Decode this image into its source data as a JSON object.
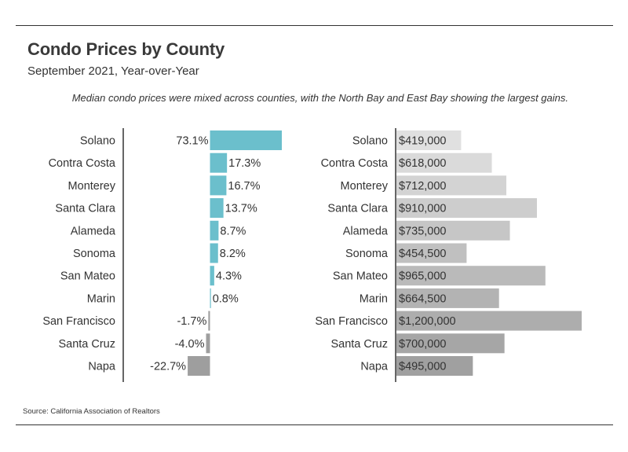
{
  "header": {
    "title": "Condo Prices by County",
    "subtitle": "September 2021, Year-over-Year",
    "note": "Median condo prices were mixed across counties, with the North Bay and East Bay showing the largest gains."
  },
  "footer": {
    "source": "Source:  California Association of Realtors"
  },
  "colors": {
    "positive": "#6bbfcc",
    "negative": "#9e9e9e",
    "price_light": "#e0e0e0",
    "price_dark": "#a0a0a0",
    "axis": "#333333"
  },
  "chart_data": [
    {
      "type": "bar",
      "orientation": "horizontal",
      "categories": [
        "Solano",
        "Contra Costa",
        "Monterey",
        "Santa Clara",
        "Alameda",
        "Sonoma",
        "San Mateo",
        "Marin",
        "San Francisco",
        "Santa Cruz",
        "Napa"
      ],
      "values": [
        73.1,
        17.3,
        16.7,
        13.7,
        8.7,
        8.2,
        4.3,
        0.8,
        -1.7,
        -4.0,
        -22.7
      ],
      "labels": [
        "73.1%",
        "17.3%",
        "16.7%",
        "13.7%",
        "8.7%",
        "8.2%",
        "4.3%",
        "0.8%",
        "-1.7%",
        "-4.0%",
        "-22.7%"
      ],
      "unit": "%"
    },
    {
      "type": "bar",
      "orientation": "horizontal",
      "categories": [
        "Solano",
        "Contra Costa",
        "Monterey",
        "Santa Clara",
        "Alameda",
        "Sonoma",
        "San Mateo",
        "Marin",
        "San Francisco",
        "Santa Cruz",
        "Napa"
      ],
      "values": [
        419000,
        618000,
        712000,
        910000,
        735000,
        454500,
        965000,
        664500,
        1200000,
        700000,
        495000
      ],
      "labels": [
        "$419,000",
        "$618,000",
        "$712,000",
        "$910,000",
        "$735,000",
        "$454,500",
        "$965,000",
        "$664,500",
        "$1,200,000",
        "$700,000",
        "$495,000"
      ],
      "unit": "$"
    }
  ]
}
